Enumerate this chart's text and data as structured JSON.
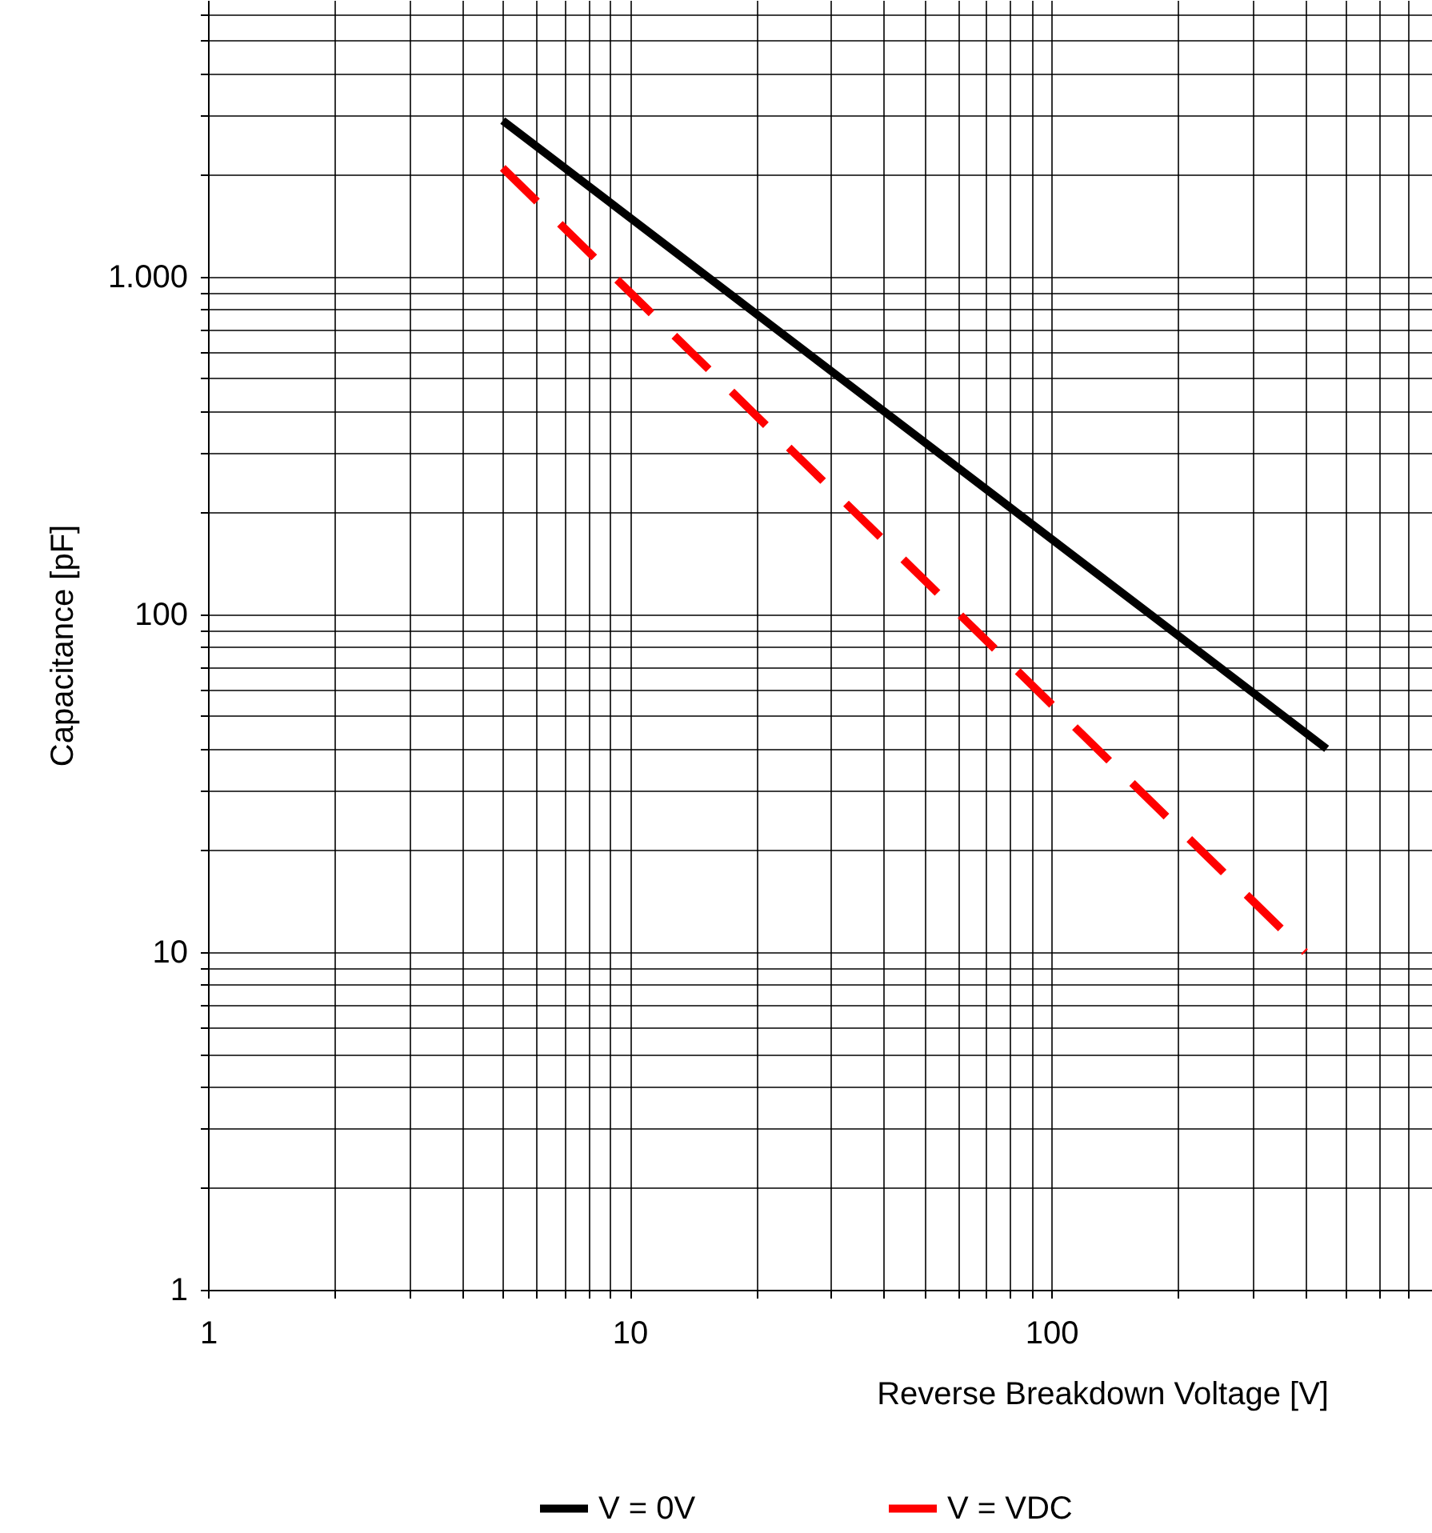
{
  "chart_data": {
    "type": "line",
    "xlabel": "Reverse Breakdown Voltage [V]",
    "ylabel": "Capacitance [pF]",
    "x": [
      5,
      450
    ],
    "series": [
      {
        "name": "V = 0V",
        "color": "#000000",
        "line_style": "solid",
        "values": [
          2900,
          40
        ]
      },
      {
        "name": "V = VDC",
        "color": "#ff0000",
        "line_style": "dashed",
        "x": [
          5,
          400
        ],
        "values": [
          2100,
          10
        ]
      }
    ],
    "log": "xy",
    "grid": true,
    "legend": "bottom",
    "xlim": [
      1,
      800
    ],
    "ylim": [
      1,
      6600
    ],
    "xticks": [
      1,
      {
        "value": 2,
        "label": null
      },
      {
        "value": 3,
        "label": null
      },
      {
        "value": 4,
        "label": null
      },
      {
        "value": 5,
        "label": null
      },
      {
        "value": 6,
        "label": null
      },
      {
        "value": 7,
        "label": null
      },
      {
        "value": 8,
        "label": null
      },
      {
        "value": 9,
        "label": null
      },
      10,
      {
        "value": 20,
        "label": null
      },
      {
        "value": 30,
        "label": null
      },
      {
        "value": 40,
        "label": null
      },
      {
        "value": 50,
        "label": null
      },
      {
        "value": 60,
        "label": null
      },
      {
        "value": 70,
        "label": null
      },
      {
        "value": 80,
        "label": null
      },
      {
        "value": 90,
        "label": null
      },
      100,
      {
        "value": 200,
        "label": null
      },
      {
        "value": 300,
        "label": null
      },
      {
        "value": 400,
        "label": null
      },
      {
        "value": 500,
        "label": null
      },
      {
        "value": 600,
        "label": null
      },
      {
        "value": 700,
        "label": null
      },
      {
        "value": 800,
        "label": null
      }
    ],
    "yticks": [
      1,
      {
        "value": 2,
        "label": null
      },
      {
        "value": 3,
        "label": null
      },
      {
        "value": 4,
        "label": null
      },
      {
        "value": 5,
        "label": null
      },
      {
        "value": 6,
        "label": null
      },
      {
        "value": 7,
        "label": null
      },
      {
        "value": 8,
        "label": null
      },
      {
        "value": 9,
        "label": null
      },
      10,
      {
        "value": 20,
        "label": null
      },
      {
        "value": 30,
        "label": null
      },
      {
        "value": 40,
        "label": null
      },
      {
        "value": 50,
        "label": null
      },
      {
        "value": 60,
        "label": null
      },
      {
        "value": 70,
        "label": null
      },
      {
        "value": 80,
        "label": null
      },
      {
        "value": 90,
        "label": null
      },
      100,
      {
        "value": 200,
        "label": null
      },
      {
        "value": 300,
        "label": null
      },
      {
        "value": 400,
        "label": null
      },
      {
        "value": 500,
        "label": null
      },
      {
        "value": 600,
        "label": null
      },
      {
        "value": 700,
        "label": null
      },
      {
        "value": 800,
        "label": null
      },
      {
        "value": 900,
        "label": null
      },
      {
        "value": 1000,
        "label": "1.000"
      },
      {
        "value": 2000,
        "label": null
      },
      {
        "value": 3000,
        "label": null
      },
      {
        "value": 4000,
        "label": null
      },
      {
        "value": 5000,
        "label": null
      },
      {
        "value": 6000,
        "label": null
      }
    ]
  }
}
